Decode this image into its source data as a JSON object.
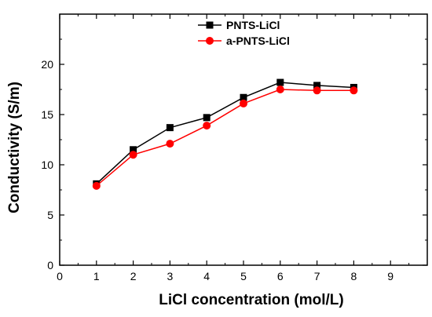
{
  "chart_data": {
    "type": "line",
    "xlabel": "LiCl concentration (mol/L)",
    "ylabel": "Conductivity (S/m)",
    "xlim": [
      0,
      10
    ],
    "ylim": [
      0,
      25
    ],
    "xticks": [
      0,
      1,
      2,
      3,
      4,
      5,
      6,
      7,
      8,
      9
    ],
    "yticks": [
      0,
      5,
      10,
      15,
      20
    ],
    "grid": false,
    "legend_position": "top-center",
    "x": [
      1,
      2,
      3,
      4,
      5,
      6,
      7,
      8
    ],
    "series": [
      {
        "name": "PNTS-LiCl",
        "values": [
          8.1,
          11.5,
          13.7,
          14.7,
          16.7,
          18.2,
          17.9,
          17.7
        ],
        "color": "#000000",
        "marker": "square"
      },
      {
        "name": "a-PNTS-LiCl",
        "values": [
          7.9,
          11.0,
          12.1,
          13.9,
          16.1,
          17.5,
          17.4,
          17.4
        ],
        "color": "#ff0000",
        "marker": "circle"
      }
    ]
  }
}
